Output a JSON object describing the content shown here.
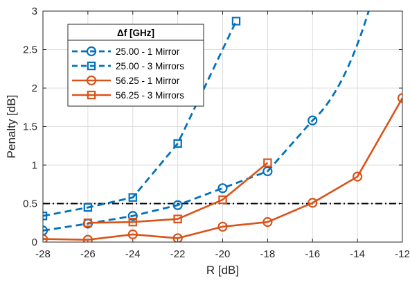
{
  "chart_data": {
    "type": "line",
    "xlabel": "R [dB]",
    "ylabel": "Penalty [dB]",
    "xlim": [
      -28,
      -12
    ],
    "ylim": [
      0,
      3
    ],
    "xticks": [
      -28,
      -26,
      -24,
      -22,
      -20,
      -18,
      -16,
      -14,
      -12
    ],
    "yticks": [
      0,
      0.5,
      1,
      1.5,
      2,
      2.5,
      3
    ],
    "ytick_labels": [
      "0",
      "0.5",
      "1",
      "1.5",
      "2",
      "2.5",
      "3"
    ],
    "grid": true,
    "legend_title": "Δf [GHz]",
    "legend_position": "top-left",
    "threshold": 0.5,
    "colors": {
      "blue": "#0072BD",
      "orange": "#D95319",
      "threshold": "#000000"
    },
    "series": [
      {
        "name": "25.00 - 1 Mirror",
        "color": "#0072BD",
        "dash": "dashed",
        "marker": "circle",
        "x": [
          -28,
          -26,
          -24,
          -22,
          -20,
          -18,
          -16
        ],
        "y": [
          0.15,
          0.24,
          0.34,
          0.48,
          0.7,
          0.92,
          1.58
        ],
        "curve_to": [
          -13.5,
          3.0
        ]
      },
      {
        "name": "25.00 - 3 Mirrors",
        "color": "#0072BD",
        "dash": "dashed",
        "marker": "square",
        "x": [
          -28,
          -26,
          -24,
          -22,
          -19.4
        ],
        "y": [
          0.34,
          0.45,
          0.58,
          1.28,
          2.87
        ]
      },
      {
        "name": "56.25 - 1 Mirror",
        "color": "#D95319",
        "dash": "solid",
        "marker": "circle",
        "x": [
          -28,
          -26,
          -24,
          -22,
          -20,
          -18,
          -16,
          -14,
          -12
        ],
        "y": [
          0.04,
          0.03,
          0.1,
          0.05,
          0.2,
          0.26,
          0.51,
          0.85,
          1.87
        ]
      },
      {
        "name": "56.25 - 3 Mirrors",
        "color": "#D95319",
        "dash": "solid",
        "marker": "square",
        "x": [
          -26,
          -24,
          -22,
          -20,
          -18
        ],
        "y": [
          0.25,
          0.26,
          0.3,
          0.55,
          1.03
        ]
      }
    ]
  }
}
